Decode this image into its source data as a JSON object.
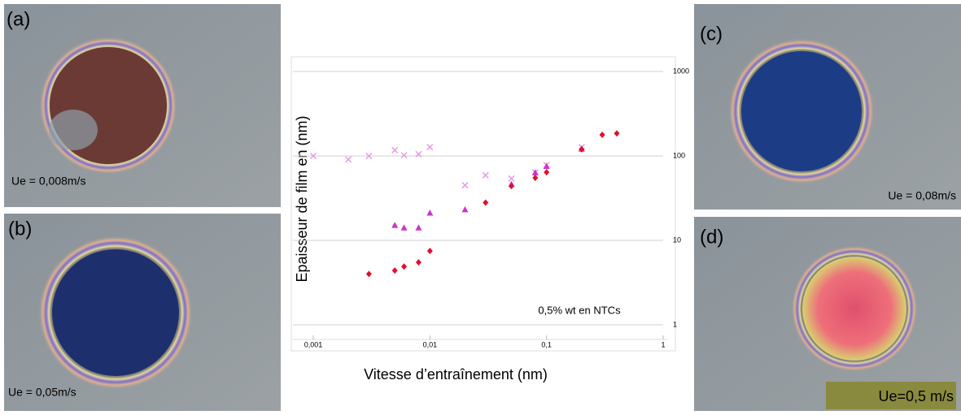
{
  "chart_data": {
    "type": "scatter",
    "xlabel": "Vitesse d’entraînement (nm)",
    "ylabel": "Epaisseur de film en (nm)",
    "annotation": "0,5% wt en NTCs",
    "xscale": "log",
    "yscale": "log",
    "xlim": [
      0.001,
      1
    ],
    "ylim": [
      1,
      1000
    ],
    "xticks": [
      {
        "value": 0.001,
        "label": "0,001"
      },
      {
        "value": 0.01,
        "label": "0,01"
      },
      {
        "value": 0.1,
        "label": "0,1"
      },
      1
    ],
    "yticks": [
      1,
      10,
      100,
      1000
    ],
    "grid": true,
    "series": [
      {
        "color": "#e89ae8",
        "marker": "x",
        "x": [
          0.001,
          0.002,
          0.003,
          0.005,
          0.006,
          0.008,
          0.01,
          0.02,
          0.03,
          0.05,
          0.08,
          0.1,
          0.2
        ],
        "values": [
          100,
          91,
          100,
          117,
          102,
          105,
          127,
          45,
          59,
          54,
          64,
          78,
          127
        ]
      },
      {
        "color": "#cc33cc",
        "marker": "triangle",
        "x": [
          0.005,
          0.006,
          0.008,
          0.01,
          0.02,
          0.05,
          0.08,
          0.1,
          0.2
        ],
        "values": [
          15,
          14,
          14,
          21,
          23,
          46,
          63,
          75,
          120
        ]
      },
      {
        "color": "#e0102a",
        "marker": "diamond",
        "x": [
          0.003,
          0.005,
          0.006,
          0.008,
          0.01,
          0.03,
          0.05,
          0.08,
          0.1,
          0.2,
          0.3,
          0.4
        ],
        "values": [
          4,
          4.4,
          4.9,
          5.5,
          7.5,
          28,
          44,
          55,
          64,
          120,
          178,
          185
        ]
      }
    ]
  },
  "panels": [
    {
      "label": "(a)",
      "speed": "Ue = 0,008m/s"
    },
    {
      "label": "(b)",
      "speed": "Ue = 0,05m/s"
    },
    {
      "label": "(c)",
      "speed": "Ue = 0,08m/s"
    },
    {
      "label": "(d)",
      "speed": "Ue=0,5 m/s"
    }
  ]
}
